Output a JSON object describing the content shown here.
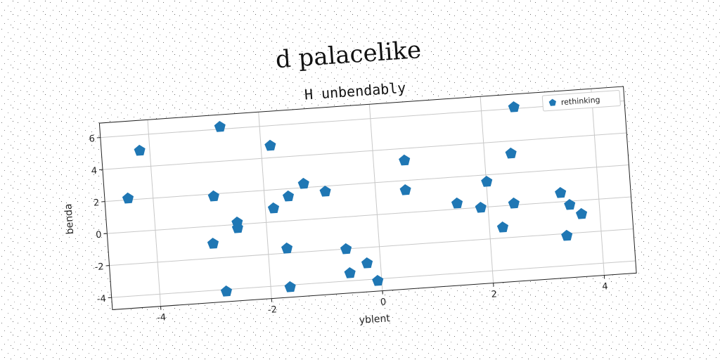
{
  "chart_data": {
    "type": "scatter",
    "title": "d palacelike",
    "subtitle": "H unbendably",
    "xlabel": "yblent",
    "ylabel": "benda",
    "xlim": [
      -4.87,
      4.58
    ],
    "ylim": [
      -4.76,
      6.9
    ],
    "xticks": [
      -4,
      -2,
      0,
      2,
      4
    ],
    "yticks": [
      -4,
      -2,
      0,
      2,
      4,
      6
    ],
    "grid": true,
    "legend": "upper right",
    "series": [
      {
        "name": "rethinking",
        "color": "#1f77b4",
        "x": [
          -4.45,
          -4.18,
          -2.71,
          -2.91,
          -2.98,
          -2.8,
          -2.52,
          -2.52,
          -1.83,
          -1.85,
          -1.57,
          -1.28,
          -0.9,
          -1.66,
          -1.65,
          -0.6,
          -0.56,
          -0.24,
          -0.07,
          0.56,
          0.54,
          1.45,
          1.87,
          2.01,
          2.24,
          2.47,
          2.48,
          2.59,
          3.32,
          3.47,
          3.38,
          3.67
        ],
        "values": [
          2.09,
          5.01,
          6.14,
          1.85,
          -1.09,
          -4.12,
          0.12,
          -0.23,
          4.75,
          0.84,
          1.52,
          2.24,
          1.66,
          -1.71,
          -4.13,
          -2.01,
          -3.52,
          -2.98,
          -4.12,
          3.25,
          1.4,
          0.35,
          -0.02,
          1.57,
          -1.34,
          0.1,
          3.22,
          6.09,
          0.55,
          -0.23,
          -2.14,
          -0.85
        ]
      }
    ]
  }
}
